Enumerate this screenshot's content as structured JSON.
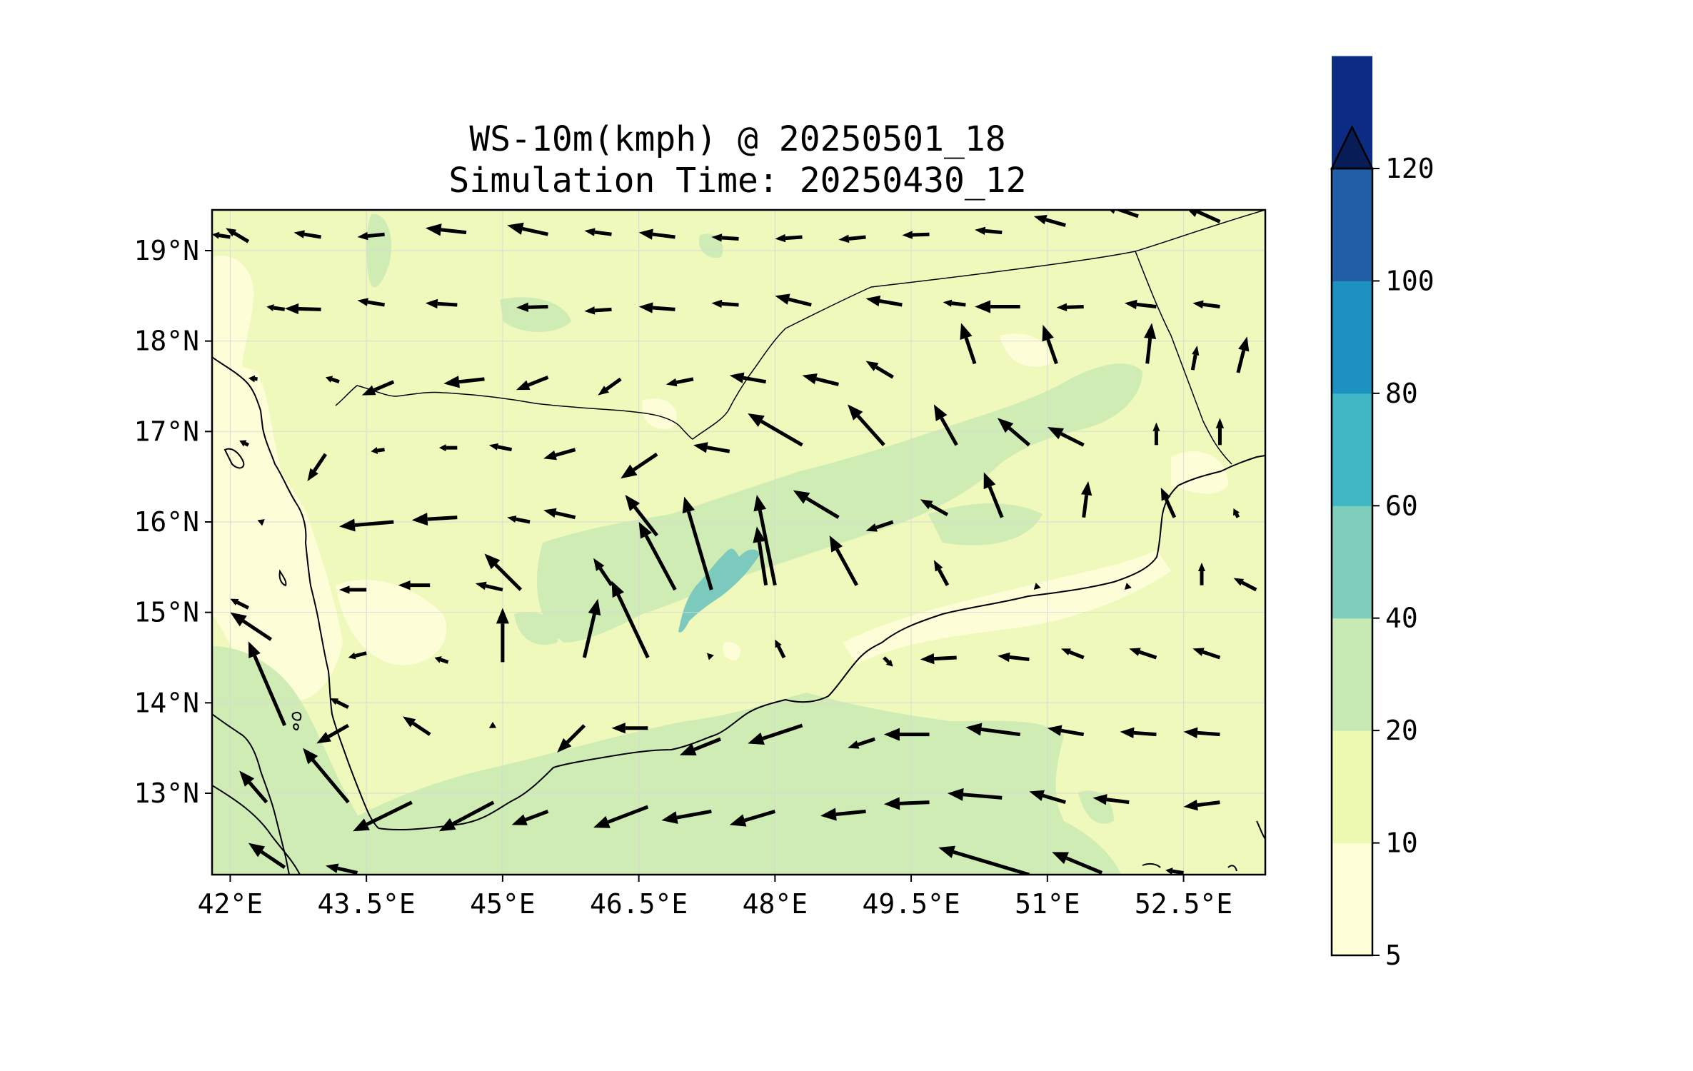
{
  "title": {
    "line1": "WS-10m(kmph) @ 20250501_18",
    "line2": "Simulation Time: 20250430_12"
  },
  "map": {
    "lon_range": [
      41.8,
      53.4
    ],
    "lat_range": [
      12.1,
      19.45
    ],
    "x_ticks": [
      {
        "value": 42.0,
        "label": "42°E"
      },
      {
        "value": 43.5,
        "label": "43.5°E"
      },
      {
        "value": 45.0,
        "label": "45°E"
      },
      {
        "value": 46.5,
        "label": "46.5°E"
      },
      {
        "value": 48.0,
        "label": "48°E"
      },
      {
        "value": 49.5,
        "label": "49.5°E"
      },
      {
        "value": 51.0,
        "label": "51°E"
      },
      {
        "value": 52.5,
        "label": "52.5°E"
      }
    ],
    "y_ticks": [
      {
        "value": 19,
        "label": "19°N"
      },
      {
        "value": 18,
        "label": "18°N"
      },
      {
        "value": 17,
        "label": "17°N"
      },
      {
        "value": 16,
        "label": "16°N"
      },
      {
        "value": 15,
        "label": "15°N"
      },
      {
        "value": 14,
        "label": "14°N"
      },
      {
        "value": 13,
        "label": "13°N"
      }
    ],
    "gridlines": true
  },
  "colorbar": {
    "levels": [
      "5",
      "10",
      "20",
      "40",
      "60",
      "80",
      "100",
      "120"
    ],
    "colors": [
      "#ffffd9",
      "#edf8b1",
      "#c7e9b4",
      "#7fcdbb",
      "#41b6c4",
      "#1d91c0",
      "#225ea8",
      "#0c2c84"
    ],
    "extend": "max",
    "extend_color": "#081d58"
  },
  "colors": {
    "land_base": "#eef9bb",
    "calm": "#fdfed8",
    "moderate": "#d0ecb5",
    "strong": "#7cc9bd",
    "coastline": "#000000",
    "arrow": "#000000"
  }
}
